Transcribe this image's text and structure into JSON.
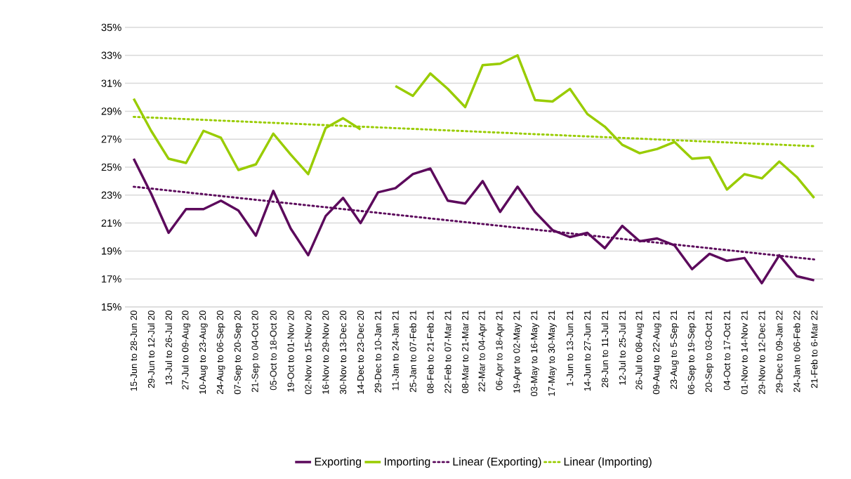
{
  "chart_data": {
    "type": "line",
    "categories": [
      "15-Jun to 28-Jun 20",
      "29-Jun to 12-Jul 20",
      "13-Jul to 26-Jul 20",
      "27-Jul to 09-Aug 20",
      "10-Aug to 23-Aug 20",
      "24-Aug to 06-Sep 20",
      "07-Sep to 20-Sep 20",
      "21-Sep to 04-Oct 20",
      "05-Oct to 18-Oct 20",
      "19-Oct to 01-Nov 20",
      "02-Nov to 15-Nov 20",
      "16-Nov to 29-Nov 20",
      "30-Nov to 13-Dec 20",
      "14-Dec to 23-Dec 20",
      "29-Dec to 10-Jan 21",
      "11-Jan to 24-Jan 21",
      "25-Jan to 07-Feb 21",
      "08-Feb to 21-Feb 21",
      "22-Feb to 07-Mar 21",
      "08-Mar to 21-Mar 21",
      "22-Mar to 04-Apr 21",
      "06-Apr to 18-Apr 21",
      "19-Apr to 02-May 21",
      "03-May to 16-May 21",
      "17-May to 30-May 21",
      "1-Jun to 13-Jun 21",
      "14-Jun to 27-Jun 21",
      "28-Jun to 11-Jul 21",
      "12-Jul to 25-Jul 21",
      "26-Jul to 08-Aug 21",
      "09-Aug to 22-Aug 21",
      "23-Aug to 5-Sep 21",
      "06-Sep to 19-Sep 21",
      "20-Sep to 03-Oct 21",
      "04-Oct to 17-Oct 21",
      "01-Nov to 14-Nov 21",
      "29-Nov to 12-Dec 21",
      "29-Dec to 09-Jan 22",
      "24-Jan to 06-Feb 22",
      "21-Feb to 6-Mar 22"
    ],
    "series": [
      {
        "name": "Exporting",
        "color": "#5c0a5c",
        "line_style": "solid",
        "values": [
          25.6,
          23.1,
          20.3,
          22.0,
          22.0,
          22.6,
          21.9,
          20.1,
          23.3,
          20.6,
          18.7,
          21.5,
          22.8,
          21.0,
          23.2,
          23.5,
          24.5,
          24.9,
          22.6,
          22.4,
          24.0,
          21.8,
          23.6,
          21.8,
          20.5,
          20.0,
          20.3,
          19.2,
          20.8,
          19.7,
          19.9,
          19.4,
          17.7,
          18.8,
          18.3,
          18.5,
          16.7,
          18.7,
          17.2,
          16.9
        ]
      },
      {
        "name": "Importing",
        "color": "#99cc00",
        "line_style": "solid",
        "values": [
          29.9,
          27.6,
          25.6,
          25.3,
          27.6,
          27.1,
          24.8,
          25.2,
          27.4,
          25.9,
          24.5,
          27.8,
          28.5,
          27.7,
          null,
          30.8,
          30.1,
          31.7,
          30.6,
          29.3,
          32.3,
          32.4,
          33.0,
          29.8,
          29.7,
          30.6,
          28.8,
          27.9,
          26.6,
          26.0,
          26.3,
          26.8,
          25.6,
          25.7,
          23.4,
          24.5,
          24.2,
          25.4,
          24.3,
          22.8
        ]
      },
      {
        "name": "Linear (Exporting)",
        "color": "#5c0a5c",
        "line_style": "dotted",
        "x": [
          "15-Jun to 28-Jun 20",
          "21-Feb to 6-Mar 22"
        ],
        "values": [
          23.6,
          18.4
        ]
      },
      {
        "name": "Linear (Importing)",
        "color": "#99cc00",
        "line_style": "dotted",
        "x": [
          "15-Jun to 28-Jun 20",
          "21-Feb to 6-Mar 22"
        ],
        "values": [
          28.6,
          26.5
        ]
      }
    ],
    "ylim": [
      15,
      35
    ],
    "yticks": [
      {
        "value": 15,
        "label": "15%"
      },
      {
        "value": 17,
        "label": "17%"
      },
      {
        "value": 19,
        "label": "19%"
      },
      {
        "value": 21,
        "label": "21%"
      },
      {
        "value": 23,
        "label": "23%"
      },
      {
        "value": 25,
        "label": "25%"
      },
      {
        "value": 27,
        "label": "27%"
      },
      {
        "value": 29,
        "label": "29%"
      },
      {
        "value": 31,
        "label": "31%"
      },
      {
        "value": 33,
        "label": "33%"
      },
      {
        "value": 35,
        "label": "35%"
      }
    ],
    "grid": "y",
    "legend": "bottom",
    "marker": "none"
  }
}
